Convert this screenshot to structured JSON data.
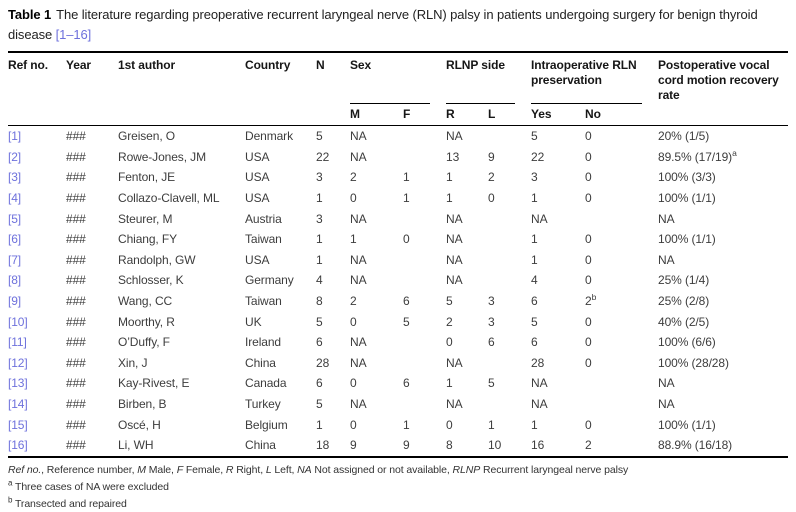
{
  "caption": {
    "label": "Table 1",
    "text": "The literature regarding preoperative recurrent laryngeal nerve (RLN) palsy in patients undergoing surgery for benign thyroid disease",
    "ref_link": "[1–16]"
  },
  "colors": {
    "link_blue": "#6e71dc",
    "rule_black": "#000000",
    "body_text": "#3d3d3d"
  },
  "table": {
    "headers": {
      "ref": "Ref no.",
      "year": "Year",
      "author": "1st author",
      "country": "Country",
      "n": "N",
      "sex": "Sex",
      "m": "M",
      "f": "F",
      "rlnp": "RLNP side",
      "r": "R",
      "l": "L",
      "intraop": "Intraoperative RLN preservation",
      "yes": "Yes",
      "no": "No",
      "rate": "Postoperative vocal cord motion recovery rate"
    },
    "rows": [
      {
        "ref": "[1]",
        "year": "###",
        "author": "Greisen, O",
        "country": "Denmark",
        "n": "5",
        "m": "NA",
        "f": "",
        "r": "NA",
        "l": "",
        "yes": "5",
        "no": "0",
        "rate": "20% (1/5)"
      },
      {
        "ref": "[2]",
        "year": "###",
        "author": "Rowe-Jones, JM",
        "country": "USA",
        "n": "22",
        "m": "NA",
        "f": "",
        "r": "13",
        "l": "9",
        "yes": "22",
        "no": "0",
        "rate": "89.5% (17/19)",
        "rate_sup": "a"
      },
      {
        "ref": "[3]",
        "year": "###",
        "author": "Fenton, JE",
        "country": "USA",
        "n": "3",
        "m": "2",
        "f": "1",
        "r": "1",
        "l": "2",
        "yes": "3",
        "no": "0",
        "rate": "100% (3/3)"
      },
      {
        "ref": "[4]",
        "year": "###",
        "author": "Collazo-Clavell, ML",
        "country": "USA",
        "n": "1",
        "m": "0",
        "f": "1",
        "r": "1",
        "l": "0",
        "yes": "1",
        "no": "0",
        "rate": "100% (1/1)"
      },
      {
        "ref": "[5]",
        "year": "###",
        "author": "Steurer, M",
        "country": "Austria",
        "n": "3",
        "m": "NA",
        "f": "",
        "r": "NA",
        "l": "",
        "yes": "NA",
        "no": "",
        "rate": "NA"
      },
      {
        "ref": "[6]",
        "year": "###",
        "author": "Chiang, FY",
        "country": "Taiwan",
        "n": "1",
        "m": "1",
        "f": "0",
        "r": "NA",
        "l": "",
        "yes": "1",
        "no": "0",
        "rate": "100% (1/1)"
      },
      {
        "ref": "[7]",
        "year": "###",
        "author": "Randolph, GW",
        "country": "USA",
        "n": "1",
        "m": "NA",
        "f": "",
        "r": "NA",
        "l": "",
        "yes": "1",
        "no": "0",
        "rate": "NA"
      },
      {
        "ref": "[8]",
        "year": "###",
        "author": "Schlosser, K",
        "country": "Germany",
        "n": "4",
        "m": "NA",
        "f": "",
        "r": "NA",
        "l": "",
        "yes": "4",
        "no": "0",
        "rate": "25% (1/4)"
      },
      {
        "ref": "[9]",
        "year": "###",
        "author": "Wang, CC",
        "country": "Taiwan",
        "n": "8",
        "m": "2",
        "f": "6",
        "r": "5",
        "l": "3",
        "yes": "6",
        "no": "2",
        "no_sup": "b",
        "rate": "25% (2/8)"
      },
      {
        "ref": "[10]",
        "year": "###",
        "author": "Moorthy, R",
        "country": "UK",
        "n": "5",
        "m": "0",
        "f": "5",
        "r": "2",
        "l": "3",
        "yes": "5",
        "no": "0",
        "rate": "40% (2/5)"
      },
      {
        "ref": "[11]",
        "year": "###",
        "author": "O’Duffy, F",
        "country": "Ireland",
        "n": "6",
        "m": "NA",
        "f": "",
        "r": "0",
        "l": "6",
        "yes": "6",
        "no": "0",
        "rate": "100% (6/6)"
      },
      {
        "ref": "[12]",
        "year": "###",
        "author": "Xin, J",
        "country": "China",
        "n": "28",
        "m": "NA",
        "f": "",
        "r": "NA",
        "l": "",
        "yes": "28",
        "no": "0",
        "rate": "100% (28/28)"
      },
      {
        "ref": "[13]",
        "year": "###",
        "author": "Kay-Rivest, E",
        "country": "Canada",
        "n": "6",
        "m": "0",
        "f": "6",
        "r": "1",
        "l": "5",
        "yes": "NA",
        "no": "",
        "rate": "NA"
      },
      {
        "ref": "[14]",
        "year": "###",
        "author": "Birben, B",
        "country": "Turkey",
        "n": "5",
        "m": "NA",
        "f": "",
        "r": "NA",
        "l": "",
        "yes": "NA",
        "no": "",
        "rate": "NA"
      },
      {
        "ref": "[15]",
        "year": "###",
        "author": "Oscé, H",
        "country": "Belgium",
        "n": "1",
        "m": "0",
        "f": "1",
        "r": "0",
        "l": "1",
        "yes": "1",
        "no": "0",
        "rate": "100% (1/1)"
      },
      {
        "ref": "[16]",
        "year": "###",
        "author": "Li, WH",
        "country": "China",
        "n": "18",
        "m": "9",
        "f": "9",
        "r": "8",
        "l": "10",
        "yes": "16",
        "no": "2",
        "rate": "88.9% (16/18)"
      }
    ]
  },
  "footnotes": {
    "abbrev": [
      {
        "i": "Ref no.",
        "n": ", Reference number, "
      },
      {
        "i": "M",
        "n": " Male, "
      },
      {
        "i": "F",
        "n": " Female, "
      },
      {
        "i": "R",
        "n": " Right, "
      },
      {
        "i": "L",
        "n": " Left, "
      },
      {
        "i": "NA",
        "n": " Not assigned or not available, "
      },
      {
        "i": "RLNP",
        "n": " Recurrent laryngeal nerve palsy"
      }
    ],
    "notes": [
      {
        "sup": "a",
        "text": "Three cases of NA were excluded"
      },
      {
        "sup": "b",
        "text": "Transected and repaired"
      }
    ]
  }
}
